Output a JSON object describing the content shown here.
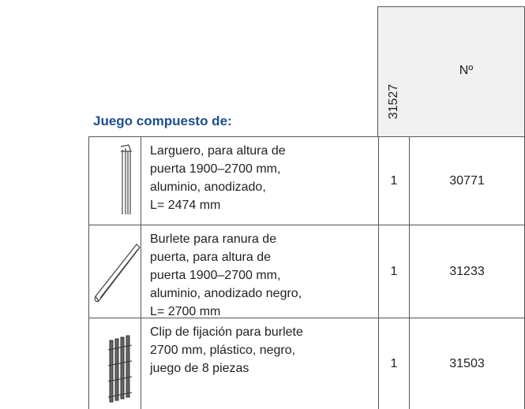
{
  "header": {
    "title": "Juego compuesto de:",
    "columns": [
      "31527",
      "Nº"
    ]
  },
  "table": {
    "rows": [
      {
        "description": [
          "Larguero, para altura de",
          "puerta 1900–2700 mm,",
          "aluminio, anodizado,",
          "L= 2474 mm"
        ],
        "quantity": "1",
        "number": "30771"
      },
      {
        "description": [
          "Burlete para ranura de",
          "puerta, para altura de",
          "puerta 1900–2700 mm,",
          "aluminio, anodizado negro,",
          "L= 2700 mm"
        ],
        "quantity": "1",
        "number": "31233"
      },
      {
        "description": [
          "Clip de fijación para burlete",
          "2700 mm, plástico, negro,",
          "juego de 8 piezas"
        ],
        "quantity": "1",
        "number": "31503"
      }
    ]
  }
}
